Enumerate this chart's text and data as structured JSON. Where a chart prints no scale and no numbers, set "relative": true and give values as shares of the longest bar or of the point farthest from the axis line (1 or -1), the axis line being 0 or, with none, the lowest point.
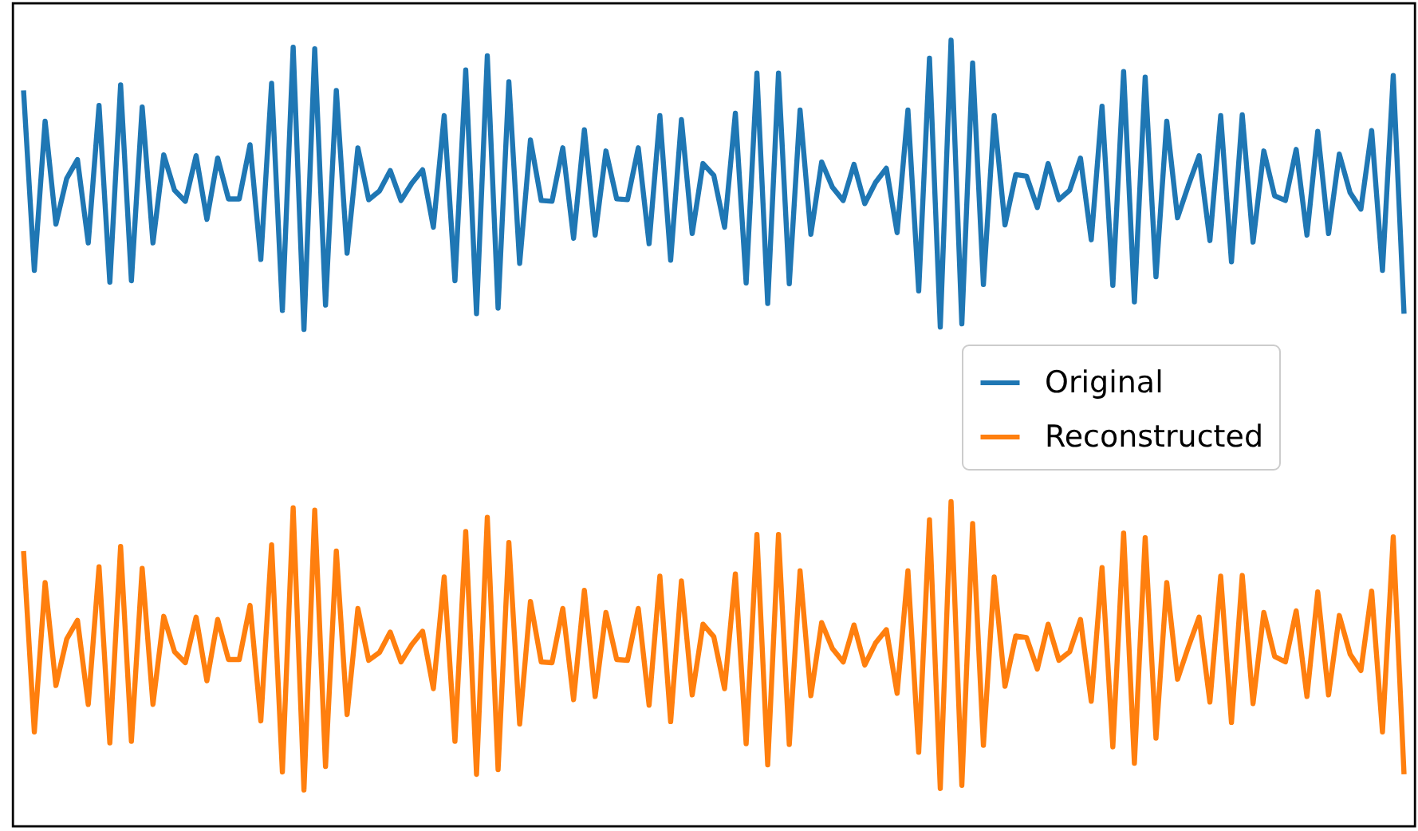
{
  "chart_data": {
    "type": "line",
    "relative": true,
    "legend": "right",
    "categories": [
      null,
      null,
      null,
      null,
      null,
      null,
      null,
      null,
      null,
      null,
      null,
      null,
      null,
      null,
      null,
      null,
      null,
      null,
      null,
      null,
      null,
      null,
      null,
      null,
      null,
      null,
      null,
      null,
      null,
      null,
      null,
      null,
      null,
      null,
      null,
      null,
      null,
      null,
      null,
      null,
      null,
      null,
      null,
      null,
      null,
      null,
      null,
      null,
      null,
      null,
      null,
      null,
      null,
      null,
      null,
      null,
      null,
      null,
      null,
      null,
      null,
      null,
      null,
      null,
      null,
      null,
      null,
      null,
      null,
      null,
      null,
      null,
      null,
      null,
      null,
      null,
      null,
      null,
      null,
      null,
      null,
      null,
      null,
      null,
      null,
      null,
      null,
      null,
      null,
      null,
      null,
      null,
      null,
      null,
      null,
      null,
      null,
      null,
      null,
      null,
      null,
      null,
      null,
      null,
      null,
      null,
      null,
      null,
      null,
      null,
      null,
      null,
      null,
      null,
      null,
      null,
      null,
      null,
      null,
      null,
      null,
      null,
      null,
      null,
      null,
      null,
      null,
      null,
      null
    ],
    "series": [
      {
        "name": "Original",
        "color": "#1f77b4",
        "values": [
          0.936,
          0.707,
          0.897,
          0.766,
          0.824,
          0.848,
          0.742,
          0.917,
          0.692,
          0.943,
          0.694,
          0.915,
          0.742,
          0.854,
          0.809,
          0.795,
          0.853,
          0.772,
          0.85,
          0.798,
          0.798,
          0.867,
          0.721,
          0.945,
          0.656,
          0.991,
          0.632,
          0.989,
          0.663,
          0.936,
          0.729,
          0.863,
          0.797,
          0.808,
          0.834,
          0.796,
          0.818,
          0.835,
          0.762,
          0.904,
          0.694,
          0.962,
          0.652,
          0.98,
          0.659,
          0.947,
          0.716,
          0.873,
          0.796,
          0.795,
          0.863,
          0.748,
          0.886,
          0.752,
          0.859,
          0.798,
          0.797,
          0.863,
          0.741,
          0.904,
          0.72,
          0.899,
          0.754,
          0.843,
          0.828,
          0.762,
          0.907,
          0.691,
          0.958,
          0.665,
          0.958,
          0.69,
          0.911,
          0.753,
          0.845,
          0.813,
          0.796,
          0.842,
          0.792,
          0.819,
          0.837,
          0.755,
          0.911,
          0.681,
          0.977,
          0.635,
          1.0,
          0.639,
          0.971,
          0.689,
          0.904,
          0.765,
          0.829,
          0.827,
          0.787,
          0.843,
          0.797,
          0.809,
          0.85,
          0.746,
          0.916,
          0.688,
          0.96,
          0.667,
          0.953,
          0.699,
          0.897,
          0.774,
          0.815,
          0.853,
          0.745,
          0.904,
          0.718,
          0.905,
          0.743,
          0.859,
          0.802,
          0.796,
          0.861,
          0.752,
          0.884,
          0.754,
          0.855,
          0.806,
          0.785,
          0.885,
          0.707,
          0.955,
          0.652
        ]
      },
      {
        "name": "Reconstructed",
        "color": "#ff7f0e",
        "values": [
          0.35,
          0.12,
          0.31,
          0.179,
          0.238,
          0.262,
          0.155,
          0.33,
          0.106,
          0.356,
          0.108,
          0.328,
          0.155,
          0.267,
          0.222,
          0.208,
          0.266,
          0.185,
          0.263,
          0.212,
          0.212,
          0.281,
          0.134,
          0.358,
          0.069,
          0.405,
          0.046,
          0.402,
          0.076,
          0.35,
          0.142,
          0.277,
          0.211,
          0.221,
          0.247,
          0.209,
          0.231,
          0.248,
          0.175,
          0.317,
          0.108,
          0.375,
          0.066,
          0.393,
          0.072,
          0.361,
          0.13,
          0.286,
          0.209,
          0.208,
          0.277,
          0.161,
          0.3,
          0.165,
          0.272,
          0.212,
          0.211,
          0.277,
          0.154,
          0.318,
          0.133,
          0.312,
          0.167,
          0.257,
          0.241,
          0.175,
          0.321,
          0.105,
          0.371,
          0.078,
          0.371,
          0.104,
          0.325,
          0.166,
          0.259,
          0.226,
          0.209,
          0.256,
          0.205,
          0.233,
          0.25,
          0.169,
          0.325,
          0.094,
          0.39,
          0.048,
          0.413,
          0.052,
          0.385,
          0.103,
          0.317,
          0.178,
          0.242,
          0.24,
          0.2,
          0.257,
          0.211,
          0.222,
          0.263,
          0.159,
          0.329,
          0.101,
          0.373,
          0.08,
          0.367,
          0.112,
          0.31,
          0.187,
          0.228,
          0.266,
          0.158,
          0.318,
          0.132,
          0.319,
          0.156,
          0.272,
          0.216,
          0.209,
          0.274,
          0.165,
          0.298,
          0.167,
          0.268,
          0.219,
          0.198,
          0.299,
          0.12,
          0.368,
          0.066
        ]
      }
    ]
  }
}
